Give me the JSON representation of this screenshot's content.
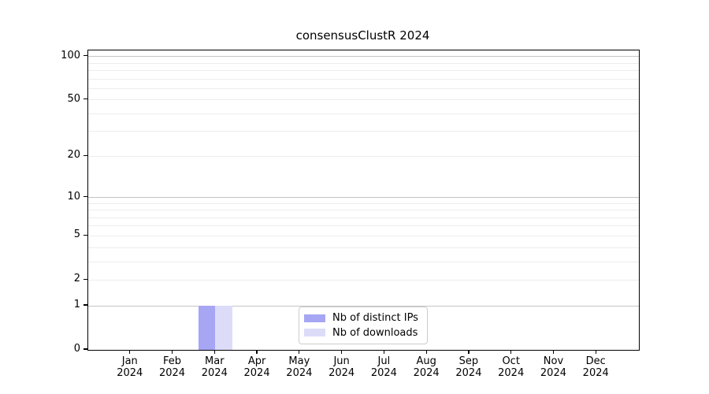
{
  "title": "consensusClustR 2024",
  "chart_data": {
    "type": "bar",
    "title": "consensusClustR 2024",
    "categories": [
      "Jan",
      "Feb",
      "Mar",
      "Apr",
      "May",
      "Jun",
      "Jul",
      "Aug",
      "Sep",
      "Oct",
      "Nov",
      "Dec"
    ],
    "category_year": "2024",
    "series": [
      {
        "name": "Nb of distinct IPs",
        "color": "#a6a6f4",
        "values": [
          0,
          0,
          1,
          0,
          0,
          0,
          0,
          0,
          0,
          0,
          0,
          0
        ]
      },
      {
        "name": "Nb of downloads",
        "color": "#dcdcf9",
        "values": [
          0,
          0,
          1,
          0,
          0,
          0,
          0,
          0,
          0,
          0,
          0,
          0
        ]
      }
    ],
    "xlabel": "",
    "ylabel": "",
    "yscale": "log1p",
    "ylim": [
      0,
      110
    ],
    "y_ticks": [
      0,
      1,
      2,
      5,
      10,
      20,
      50,
      100
    ],
    "y_major_gridlines": [
      1,
      10,
      100
    ],
    "y_minor_gridlines": [
      2,
      3,
      4,
      5,
      6,
      7,
      8,
      9,
      20,
      30,
      40,
      50,
      60,
      70,
      80,
      90
    ],
    "grid": "horizontal-only",
    "legend_position": "lower-center",
    "colors": {
      "major_grid": "#c4c4c4",
      "minor_grid": "#ececec",
      "axis": "#000000",
      "background": "#ffffff",
      "text": "#000000"
    }
  }
}
